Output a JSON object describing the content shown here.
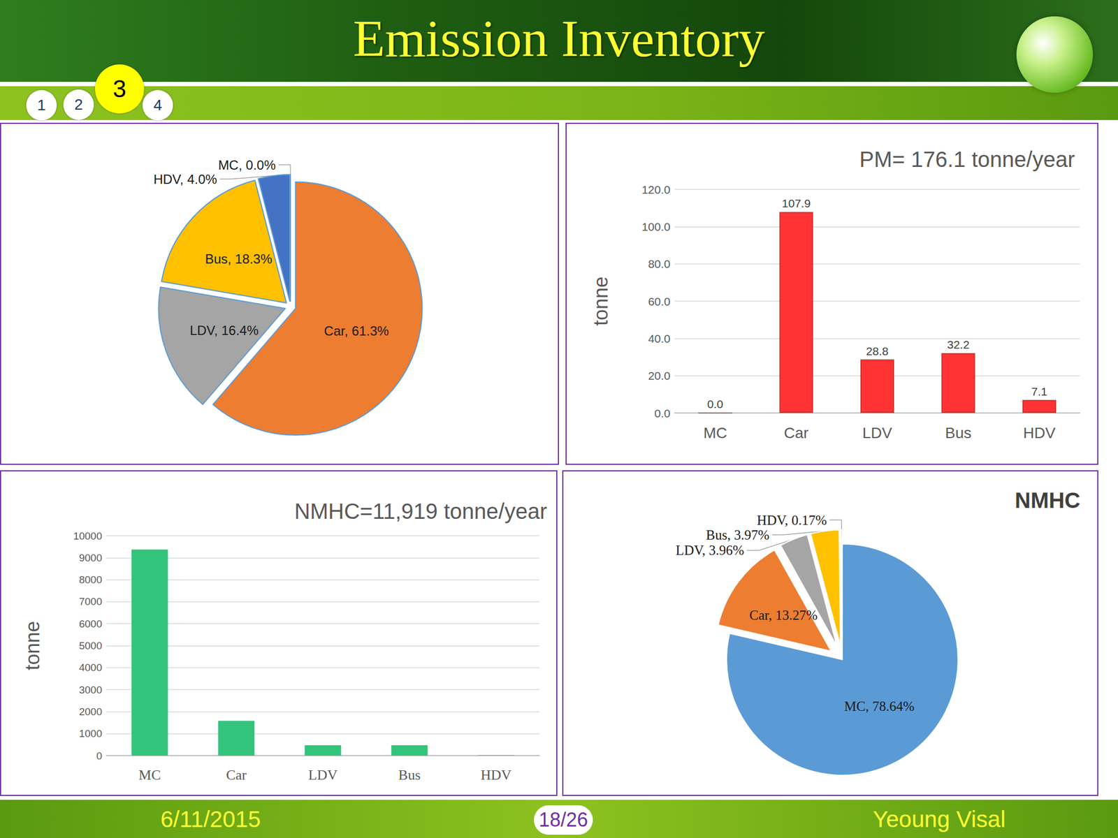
{
  "slide": {
    "title": "Emission Inventory",
    "steps": [
      1,
      2,
      3,
      4
    ],
    "active_step": 3,
    "date": "6/11/2015",
    "page": "18/26",
    "author": "Yeoung Visal"
  },
  "chart_data": [
    {
      "type": "pie",
      "categories": [
        "MC",
        "Car",
        "LDV",
        "Bus",
        "HDV"
      ],
      "values": [
        0.0,
        61.3,
        16.4,
        18.3,
        4.0
      ],
      "value_labels": [
        "MC, 0.0%",
        "Car, 61.3%",
        "LDV, 16.4%",
        "Bus, 18.3%",
        "HDV, 4.0%"
      ],
      "colors": [
        "#5b9bd5",
        "#ed7d31",
        "#a5a5a5",
        "#ffc000",
        "#4472c4"
      ],
      "data_labels": true
    },
    {
      "type": "bar",
      "title": "PM= 176.1 tonne/year",
      "y_label": "tonne",
      "categories": [
        "MC",
        "Car",
        "LDV",
        "Bus",
        "HDV"
      ],
      "values": [
        0.0,
        107.9,
        28.8,
        32.2,
        7.1
      ],
      "value_labels": [
        "0.0",
        "107.9",
        "28.8",
        "32.2",
        "7.1"
      ],
      "color": "#ff3333",
      "ylim": [
        0,
        120
      ],
      "yticks": [
        {
          "value": 0,
          "label": "0.0"
        },
        {
          "value": 20,
          "label": "20.0"
        },
        {
          "value": 40,
          "label": "40.0"
        },
        {
          "value": 60,
          "label": "60.0"
        },
        {
          "value": 80,
          "label": "80.0"
        },
        {
          "value": 100,
          "label": "100.0"
        },
        {
          "value": 120,
          "label": "120.0"
        }
      ],
      "grid": true,
      "data_labels": true
    },
    {
      "type": "bar",
      "title": "NMHC=11,919 tonne/year",
      "y_label": "tonne",
      "categories": [
        "MC",
        "Car",
        "LDV",
        "Bus",
        "HDV"
      ],
      "values": [
        9373,
        1582,
        472,
        473,
        20
      ],
      "color": "#33c47c",
      "ylim": [
        0,
        10000
      ],
      "yticks": [
        0,
        1000,
        2000,
        3000,
        4000,
        5000,
        6000,
        7000,
        8000,
        9000,
        10000
      ],
      "grid": true,
      "data_labels": false
    },
    {
      "type": "pie",
      "title": "NMHC",
      "categories": [
        "MC",
        "Car",
        "LDV",
        "Bus",
        "HDV"
      ],
      "values": [
        78.64,
        13.27,
        3.96,
        3.97,
        0.17
      ],
      "value_labels": [
        "MC, 78.64%",
        "Car, 13.27%",
        "LDV, 3.96%",
        "Bus, 3.97%",
        "HDV, 0.17%"
      ],
      "colors": [
        "#5b9bd5",
        "#ed7d31",
        "#a5a5a5",
        "#ffc000",
        "#4472c4"
      ],
      "data_labels": true
    }
  ]
}
